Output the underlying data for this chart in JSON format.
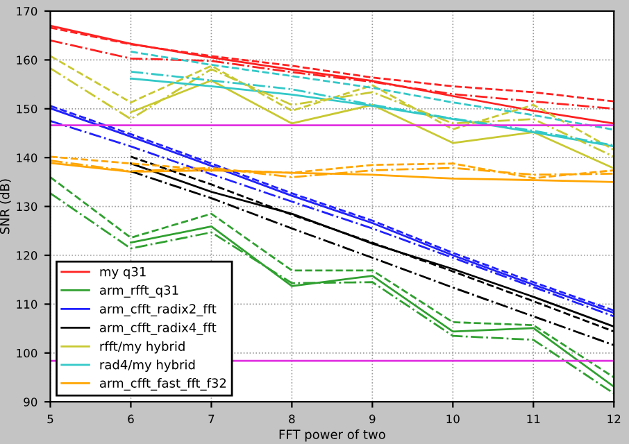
{
  "chart_data": {
    "type": "line",
    "xlabel": "FFT power of two",
    "ylabel": "SNR (dB)",
    "x": [
      5,
      6,
      7,
      8,
      9,
      10,
      11,
      12
    ],
    "xlim": [
      5,
      12
    ],
    "xticks": [
      5,
      6,
      7,
      8,
      9,
      10,
      11,
      12
    ],
    "ylim": [
      90,
      170
    ],
    "yticks": [
      90,
      100,
      110,
      120,
      130,
      140,
      150,
      160,
      170
    ],
    "grid": true,
    "legend": "bottom left",
    "line_style": "solid",
    "series": [
      {
        "name": "my q31",
        "color": "#ff2020",
        "values": [
          167.0,
          163.3,
          160.5,
          158.0,
          155.7,
          152.6,
          149.6,
          147.0
        ]
      },
      {
        "name": "arm_rfft_q31",
        "color": "#30a030",
        "values": [
          null,
          122.6,
          125.9,
          113.7,
          115.8,
          104.4,
          105.1,
          93.1
        ]
      },
      {
        "name": "arm_cfft_radix2_fft",
        "color": "#2020ff",
        "values": [
          150.1,
          144.3,
          138.3,
          132.2,
          126.6,
          120.0,
          114.0,
          108.2
        ]
      },
      {
        "name": "arm_cfft_radix4_fft",
        "color": "#000000",
        "values": [
          null,
          138.8,
          133.0,
          128.5,
          122.4,
          117.2,
          111.5,
          105.4
        ]
      },
      {
        "name": "rfft/my hybrid",
        "color": "#c8c832",
        "values": [
          null,
          149.3,
          155.8,
          147.0,
          150.8,
          143.0,
          145.2,
          137.8
        ]
      },
      {
        "name": "rad4/my hybrid",
        "color": "#33c8c8",
        "values": [
          null,
          156.2,
          154.6,
          152.9,
          150.6,
          147.9,
          145.2,
          142.3
        ]
      },
      {
        "name": "arm_cfft_fast_fft_f32",
        "color": "#ffa500",
        "values": [
          138.9,
          137.1,
          137.4,
          136.9,
          136.5,
          135.7,
          135.4,
          135.0
        ]
      },
      {
        "color": "#ff2020",
        "line_style": "dashed",
        "values": [
          166.6,
          163.2,
          160.8,
          158.8,
          156.4,
          154.6,
          153.4,
          151.5
        ]
      },
      {
        "color": "#ff2020",
        "line_style": "dotted",
        "values": [
          164.0,
          160.3,
          159.8,
          157.5,
          155.5,
          153.0,
          151.5,
          150.0
        ]
      },
      {
        "color": "#30a030",
        "line_style": "dashed",
        "values": [
          136.0,
          123.6,
          128.5,
          116.9,
          116.9,
          106.3,
          105.7,
          95.0
        ]
      },
      {
        "color": "#30a030",
        "line_style": "dotted",
        "values": [
          132.7,
          121.4,
          124.7,
          114.3,
          114.5,
          103.5,
          102.7,
          91.7
        ]
      },
      {
        "color": "#2020ff",
        "line_style": "dashed",
        "values": [
          150.6,
          144.8,
          138.8,
          132.7,
          127.1,
          120.5,
          114.5,
          108.7
        ]
      },
      {
        "color": "#2020ff",
        "line_style": "dotted",
        "values": [
          147.5,
          142.3,
          136.6,
          131.0,
          125.5,
          119.5,
          113.5,
          107.5
        ]
      },
      {
        "color": "#000000",
        "line_style": "dashed",
        "values": [
          null,
          140.2,
          134.5,
          128.3,
          122.6,
          116.7,
          110.6,
          104.4
        ]
      },
      {
        "color": "#000000",
        "line_style": "dotted",
        "values": [
          null,
          137.2,
          131.7,
          125.5,
          119.5,
          113.4,
          107.5,
          101.6
        ]
      },
      {
        "color": "#c8c832",
        "line_style": "dashed",
        "values": [
          160.8,
          151.3,
          158.8,
          149.6,
          154.8,
          145.8,
          150.8,
          141.6
        ]
      },
      {
        "color": "#c8c832",
        "line_style": "dotted",
        "values": [
          158.3,
          147.9,
          158.1,
          150.8,
          153.4,
          147.0,
          147.9,
          140.2
        ]
      },
      {
        "color": "#33c8c8",
        "line_style": "dashed",
        "values": [
          null,
          161.7,
          159.0,
          156.7,
          154.3,
          151.3,
          148.7,
          145.7
        ]
      },
      {
        "color": "#33c8c8",
        "line_style": "dotted",
        "values": [
          null,
          157.6,
          155.8,
          154.0,
          150.8,
          148.0,
          145.5,
          142.5
        ]
      },
      {
        "color": "#ffa500",
        "line_style": "dashed",
        "values": [
          140.2,
          138.8,
          137.5,
          136.9,
          138.5,
          138.8,
          135.8,
          137.4
        ]
      },
      {
        "color": "#ffa500",
        "line_style": "dotted",
        "values": [
          139.4,
          137.2,
          137.9,
          136.0,
          137.4,
          137.9,
          136.5,
          136.7
        ]
      }
    ],
    "ref_lines": [
      {
        "axis": "y",
        "value": 146.6,
        "color": "#e030e0"
      },
      {
        "axis": "y",
        "value": 98.4,
        "color": "#e030e0"
      }
    ]
  }
}
